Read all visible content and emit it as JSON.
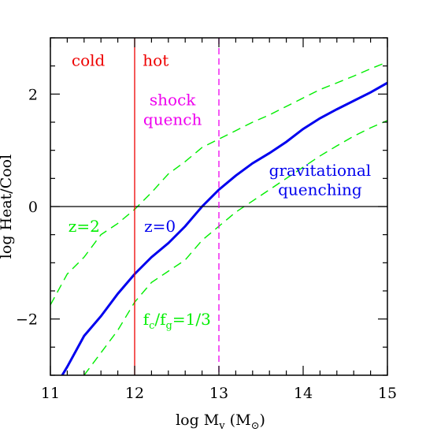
{
  "chart_data": {
    "type": "line",
    "xlabel": "log M",
    "xlabel_sub": "v",
    "xlabel_unit_open": " (M",
    "xlabel_unit_sub": "⊙",
    "xlabel_unit_close": ")",
    "ylabel": "log Heat/Cool",
    "xlim": [
      11,
      15
    ],
    "ylim": [
      -3,
      3
    ],
    "xticks": [
      11,
      12,
      13,
      14,
      15
    ],
    "xtick_labels": [
      "11",
      "12",
      "13",
      "14",
      "15"
    ],
    "yticks": [
      -2,
      0,
      2
    ],
    "ytick_labels": [
      "−2",
      "0",
      "2"
    ],
    "grid": false,
    "series": [
      {
        "name": "z=0",
        "color": "#0000ee",
        "style": "solid",
        "x": [
          11.0,
          11.2,
          11.4,
          11.6,
          11.8,
          12.0,
          12.2,
          12.4,
          12.6,
          12.8,
          13.0,
          13.2,
          13.4,
          13.6,
          13.8,
          14.0,
          14.2,
          14.4,
          14.6,
          14.8,
          15.0
        ],
        "y": [
          -3.35,
          -2.85,
          -2.3,
          -1.95,
          -1.55,
          -1.2,
          -0.9,
          -0.65,
          -0.35,
          0.0,
          0.3,
          0.55,
          0.77,
          0.95,
          1.15,
          1.38,
          1.57,
          1.73,
          1.88,
          2.03,
          2.2
        ]
      },
      {
        "name": "z=2",
        "color": "#00ee00",
        "style": "dashed",
        "x": [
          11.0,
          11.2,
          11.4,
          11.6,
          11.8,
          12.0,
          12.2,
          12.4,
          12.6,
          12.8,
          13.0,
          13.2,
          13.4,
          13.6,
          13.8,
          14.0,
          14.2,
          14.4,
          14.6,
          14.8,
          15.0
        ],
        "y": [
          -1.75,
          -1.2,
          -0.9,
          -0.5,
          -0.3,
          -0.05,
          0.25,
          0.58,
          0.8,
          1.05,
          1.2,
          1.35,
          1.5,
          1.63,
          1.78,
          1.93,
          2.08,
          2.2,
          2.32,
          2.45,
          2.57
        ]
      },
      {
        "name": "f_c/f_g=1/3",
        "color": "#00ee00",
        "style": "dashed",
        "x": [
          11.4,
          11.6,
          11.8,
          12.0,
          12.2,
          12.4,
          12.6,
          12.8,
          13.0,
          13.2,
          13.4,
          13.6,
          13.8,
          14.0,
          14.2,
          14.4,
          14.6,
          14.8,
          15.0
        ],
        "y": [
          -3.0,
          -2.6,
          -2.2,
          -1.7,
          -1.35,
          -1.15,
          -0.95,
          -0.6,
          -0.35,
          -0.1,
          0.1,
          0.3,
          0.5,
          0.7,
          0.9,
          1.08,
          1.25,
          1.4,
          1.53
        ]
      }
    ],
    "hlines": [
      {
        "y": 0,
        "color": "#000000",
        "style": "solid"
      }
    ],
    "vlines": [
      {
        "x": 12,
        "color": "#ee0000",
        "style": "solid"
      },
      {
        "x": 13,
        "color": "#ee00ee",
        "style": "dashed"
      }
    ],
    "annotations": [
      {
        "id": "cold",
        "text": "cold",
        "color": "#ee0000",
        "x": 11.45,
        "y": 2.5
      },
      {
        "id": "hot",
        "text": "hot",
        "color": "#ee0000",
        "x": 12.25,
        "y": 2.5
      },
      {
        "id": "shock",
        "text": "shock",
        "color": "#ee00ee",
        "x": 12.45,
        "y": 1.8
      },
      {
        "id": "quench",
        "text": "quench",
        "color": "#ee00ee",
        "x": 12.45,
        "y": 1.45
      },
      {
        "id": "grav1",
        "text": "gravitational",
        "color": "#0000ee",
        "x": 14.2,
        "y": 0.55
      },
      {
        "id": "grav2",
        "text": "quenching",
        "color": "#0000ee",
        "x": 14.2,
        "y": 0.2
      },
      {
        "id": "z0",
        "text": "z=0",
        "color": "#0000ee",
        "x": 12.3,
        "y": -0.45
      },
      {
        "id": "z2",
        "text": "z=2",
        "color": "#00ee00",
        "x": 11.4,
        "y": -0.45
      }
    ],
    "fc_label": {
      "color": "#00ee00",
      "x": 12.1,
      "y": -2.1,
      "main1": "f",
      "sub1": "c",
      "mid": "/f",
      "sub2": "g",
      "tail": "=1/3"
    }
  }
}
